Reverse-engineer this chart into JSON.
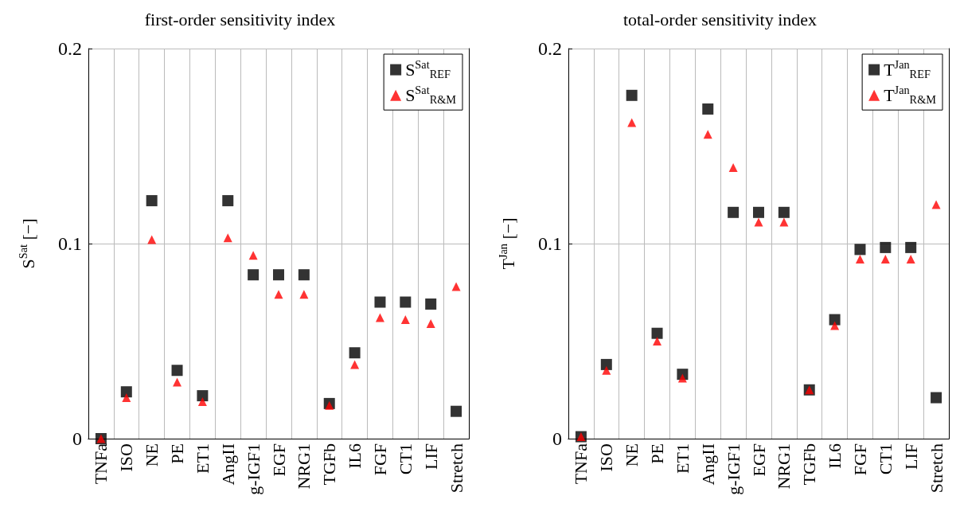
{
  "chart_data": [
    {
      "type": "scatter",
      "title": "first-order sensitivity index",
      "ylabel": "S$^{Sat}$ [−]",
      "categories": [
        "TNFa",
        "ISO",
        "NE",
        "PE",
        "ET1",
        "AngII",
        "g-IGF1",
        "EGF",
        "NRG1",
        "TGFb",
        "IL6",
        "FGF",
        "CT1",
        "LIF",
        "Stretch"
      ],
      "series": [
        {
          "name": "S$^{Sat}$$_{REF}$",
          "color": "#000000",
          "marker": "square",
          "values": [
            0.0,
            0.024,
            0.122,
            0.035,
            0.022,
            0.122,
            0.084,
            0.084,
            0.084,
            0.018,
            0.044,
            0.07,
            0.07,
            0.069,
            0.014
          ]
        },
        {
          "name": "S$^{Sat}$$_{R&M}$",
          "color": "#ff0000",
          "marker": "triangle",
          "values": [
            0.0,
            0.021,
            0.102,
            0.029,
            0.019,
            0.103,
            0.094,
            0.074,
            0.074,
            0.017,
            0.038,
            0.062,
            0.061,
            0.059,
            0.078
          ]
        }
      ],
      "ylim": [
        0,
        0.2
      ],
      "yticks": [
        0,
        0.1,
        0.2
      ],
      "grid": true,
      "legend": "top right"
    },
    {
      "type": "scatter",
      "title": "total-order sensitivity index",
      "ylabel": "T$^{Jan}$ [−]",
      "categories": [
        "TNFa",
        "ISO",
        "NE",
        "PE",
        "ET1",
        "AngII",
        "g-IGF1",
        "EGF",
        "NRG1",
        "TGFb",
        "IL6",
        "FGF",
        "CT1",
        "LIF",
        "Stretch"
      ],
      "series": [
        {
          "name": "T$^{Jan}$$_{REF}$",
          "color": "#000000",
          "marker": "square",
          "values": [
            0.001,
            0.038,
            0.176,
            0.054,
            0.033,
            0.169,
            0.116,
            0.116,
            0.116,
            0.025,
            0.061,
            0.097,
            0.098,
            0.098,
            0.021
          ]
        },
        {
          "name": "T$^{Jan}$$_{R&M}$",
          "color": "#ff0000",
          "marker": "triangle",
          "values": [
            0.001,
            0.035,
            0.162,
            0.05,
            0.031,
            0.156,
            0.139,
            0.111,
            0.111,
            0.025,
            0.058,
            0.092,
            0.092,
            0.092,
            0.12
          ]
        }
      ],
      "ylim": [
        0,
        0.2
      ],
      "yticks": [
        0,
        0.1,
        0.2
      ],
      "grid": true,
      "legend": "top right"
    }
  ]
}
